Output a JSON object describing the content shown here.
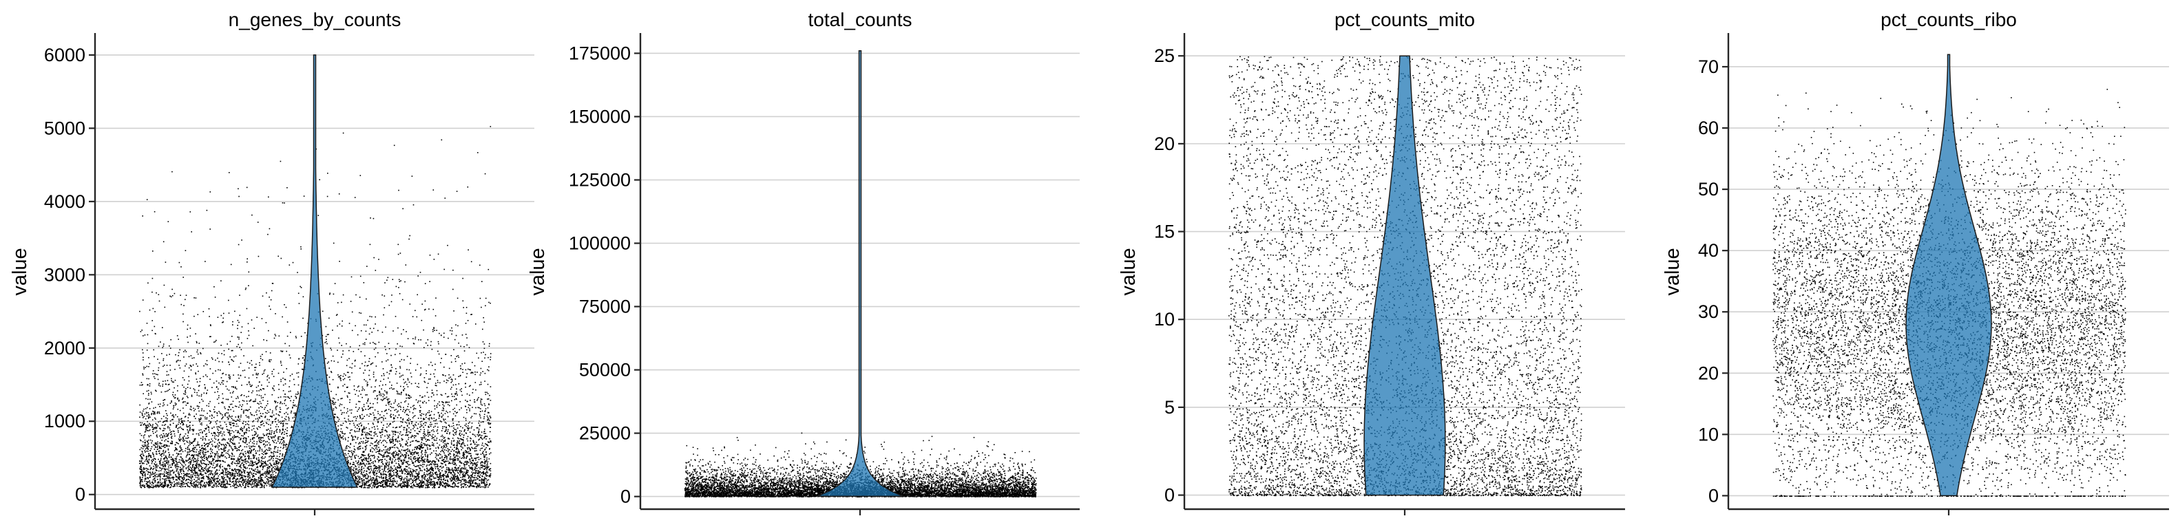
{
  "chart_data": [
    {
      "type": "violin",
      "title": "n_genes_by_counts",
      "ylabel": "value",
      "ylim": [
        -200,
        6300
      ],
      "yticks": [
        0,
        1000,
        2000,
        3000,
        4000,
        5000,
        6000
      ],
      "ytick_labels": [
        "0",
        "1000",
        "2000",
        "3000",
        "4000",
        "5000",
        "6000"
      ],
      "grid": true,
      "distribution": {
        "min": 100,
        "max": 6000,
        "median": 800,
        "peak": 500,
        "scale": 650
      },
      "colors": {
        "violin": "#1f77b4",
        "points": "#000000"
      }
    },
    {
      "type": "violin",
      "title": "total_counts",
      "ylabel": "value",
      "ylim": [
        -5000,
        183000
      ],
      "yticks": [
        0,
        25000,
        50000,
        75000,
        100000,
        125000,
        150000,
        175000
      ],
      "ytick_labels": [
        "0",
        "25000",
        "50000",
        "75000",
        "100000",
        "125000",
        "150000",
        "175000"
      ],
      "grid": true,
      "distribution": {
        "min": 100,
        "max": 176000,
        "median": 3000,
        "peak": 2000,
        "scale": 3500
      },
      "colors": {
        "violin": "#1f77b4",
        "points": "#000000"
      }
    },
    {
      "type": "violin",
      "title": "pct_counts_mito",
      "ylabel": "value",
      "ylim": [
        -0.8,
        26.3
      ],
      "yticks": [
        0,
        5,
        10,
        15,
        20,
        25
      ],
      "ytick_labels": [
        "0",
        "5",
        "10",
        "15",
        "20",
        "25"
      ],
      "grid": true,
      "distribution": {
        "min": 0,
        "max": 25,
        "median": 5,
        "peak": 3,
        "scale": 8
      },
      "colors": {
        "violin": "#1f77b4",
        "points": "#000000"
      }
    },
    {
      "type": "violin",
      "title": "pct_counts_ribo",
      "ylabel": "value",
      "ylim": [
        -2.2,
        75.5
      ],
      "yticks": [
        0,
        10,
        20,
        30,
        40,
        50,
        60,
        70
      ],
      "ytick_labels": [
        "0",
        "10",
        "20",
        "30",
        "40",
        "50",
        "60",
        "70"
      ],
      "grid": true,
      "distribution": {
        "min": 0,
        "max": 72,
        "median": 27,
        "peak": 28,
        "scale": 14
      },
      "colors": {
        "violin": "#1f77b4",
        "points": "#000000"
      }
    }
  ]
}
